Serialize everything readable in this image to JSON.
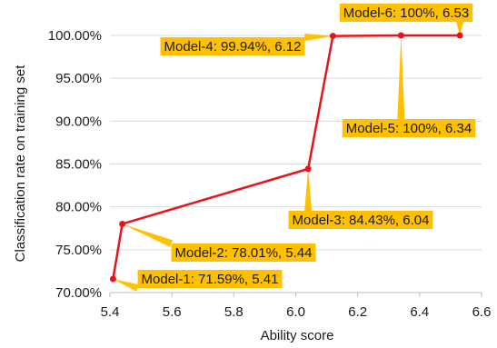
{
  "chart_data": {
    "type": "line",
    "title": "",
    "xlabel": "Ability score",
    "ylabel": "Classification rate on training set",
    "xlim": [
      5.4,
      6.6
    ],
    "ylim": [
      70,
      100
    ],
    "x_ticks": [
      "5.4",
      "5.6",
      "5.8",
      "6.0",
      "6.2",
      "6.4",
      "6.6"
    ],
    "y_ticks": [
      "70.00%",
      "75.00%",
      "80.00%",
      "85.00%",
      "90.00%",
      "95.00%",
      "100.00%"
    ],
    "grid": "horizontal",
    "legend": "none",
    "series": [
      {
        "x": [
          5.41,
          5.44,
          6.04,
          6.12,
          6.34,
          6.53
        ],
        "y": [
          71.59,
          78.01,
          84.43,
          99.94,
          100,
          100
        ],
        "labels": [
          "Model-1: 71.59%, 5.41",
          "Model-2: 78.01%, 5.44",
          "Model-3: 84.43%, 6.04",
          "Model-4: 99.94%, 6.12",
          "Model-5: 100%, 6.34",
          "Model-6: 100%, 6.53"
        ]
      }
    ],
    "colors": {
      "line": "#e8141c",
      "label_bg": "#ffc000",
      "grid": "#d9d9d9",
      "axis": "#bfbfbf"
    }
  }
}
